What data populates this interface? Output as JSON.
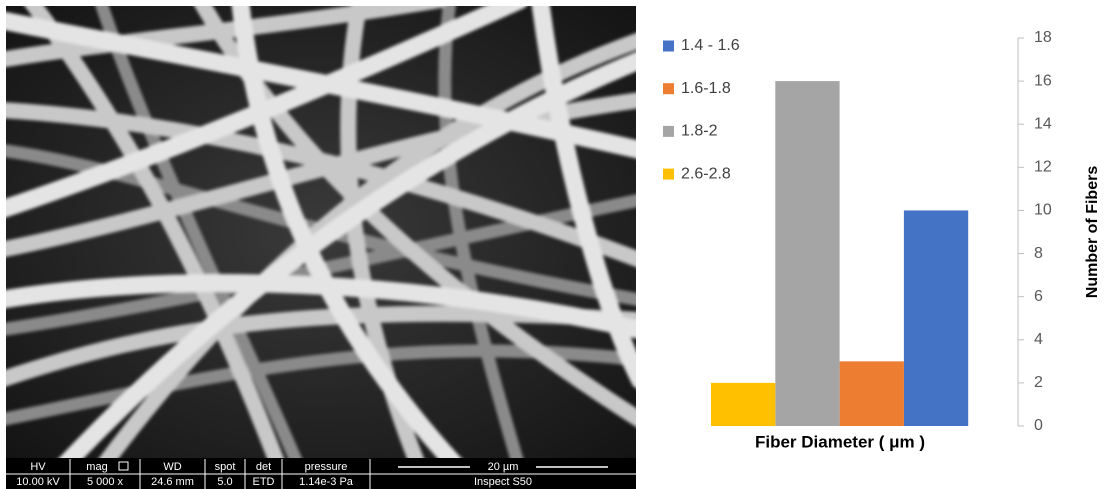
{
  "sem_image": {
    "info_bar": {
      "headers": [
        "HV",
        "mag",
        "WD",
        "spot",
        "det",
        "pressure"
      ],
      "values": [
        "10.00 kV",
        "5 000 x",
        "24.6 mm",
        "5.0",
        "ETD",
        "1.14e-3 Pa"
      ],
      "scale_bar": "20 µm",
      "instrument": "Inspect S50"
    }
  },
  "chart_data": {
    "type": "bar",
    "x_label": "Fiber Diameter  ( μm )",
    "y_label": "Number of Fibers",
    "categories": [
      null
    ],
    "series": [
      {
        "name": "1.4 - 1.6",
        "color": "#4472c4",
        "values": [
          10
        ]
      },
      {
        "name": "1.6-1.8",
        "color": "#ed7d31",
        "values": [
          3
        ]
      },
      {
        "name": "1.8-2",
        "color": "#a5a5a5",
        "values": [
          16
        ]
      },
      {
        "name": "2.6-2.8",
        "color": "#ffc000",
        "values": [
          2
        ]
      }
    ],
    "ylim": [
      0,
      18
    ],
    "yticks": [
      0,
      2,
      4,
      6,
      8,
      10,
      12,
      14,
      16,
      18
    ],
    "y_axis_side": "right",
    "legend": "left"
  }
}
